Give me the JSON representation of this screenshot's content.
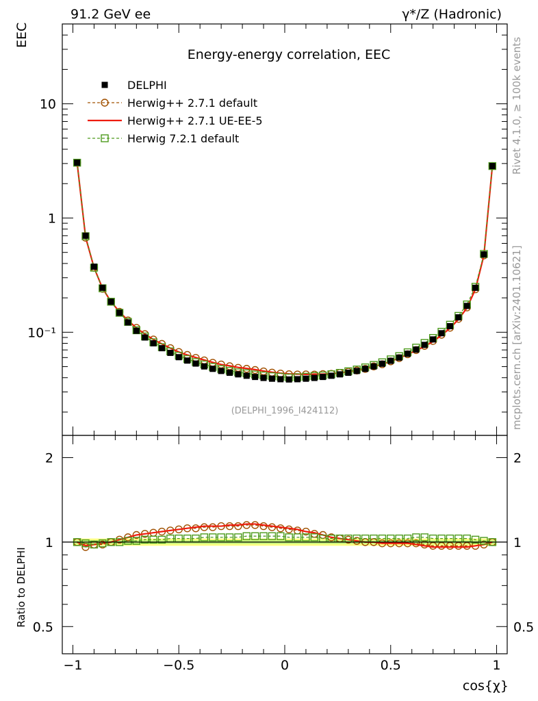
{
  "header": {
    "left": "91.2 GeV ee",
    "right": "γ*/Z (Hadronic)"
  },
  "side_labels": {
    "rivet": "Rivet 4.1.0, ≥ 100k events",
    "mcplots": "mcplots.cern.ch [arXiv:2401.10621]"
  },
  "chart_data": {
    "type": "line",
    "title": "Energy-energy correlation, EEC",
    "watermark": "(DELPHI_1996_I424112)",
    "xlabel": "cos{χ}",
    "ylabel": "EEC",
    "ratio_ylabel": "Ratio to DELPHI",
    "xlim": [
      -1.05,
      1.05
    ],
    "ylim": [
      0.0125,
      50
    ],
    "yscale": "log",
    "ratio_ylim": [
      0.4,
      2.4
    ],
    "x_ticks": [
      {
        "v": -1,
        "label": "−1"
      },
      {
        "v": -0.5,
        "label": "−0.5"
      },
      {
        "v": 0,
        "label": "0"
      },
      {
        "v": 0.5,
        "label": "0.5"
      },
      {
        "v": 1,
        "label": "1"
      }
    ],
    "y_ticks": [
      {
        "v": 10,
        "label": "10"
      },
      {
        "v": 1,
        "label": "1"
      },
      {
        "v": 0.1,
        "label": "10⁻¹"
      }
    ],
    "ratio_ticks": [
      {
        "v": 2,
        "label": "2"
      },
      {
        "v": 1,
        "label": "1"
      },
      {
        "v": 0.5,
        "label": "0.5"
      }
    ],
    "x": [
      -0.98,
      -0.94,
      -0.9,
      -0.86,
      -0.82,
      -0.78,
      -0.74,
      -0.7,
      -0.66,
      -0.62,
      -0.58,
      -0.54,
      -0.5,
      -0.46,
      -0.42,
      -0.38,
      -0.34,
      -0.3,
      -0.26,
      -0.22,
      -0.18,
      -0.14,
      -0.1,
      -0.06,
      -0.02,
      0.02,
      0.06,
      0.1,
      0.14,
      0.18,
      0.22,
      0.26,
      0.3,
      0.34,
      0.38,
      0.42,
      0.46,
      0.5,
      0.54,
      0.58,
      0.62,
      0.66,
      0.7,
      0.74,
      0.78,
      0.82,
      0.86,
      0.9,
      0.94,
      0.98
    ],
    "series": [
      {
        "name": "DELPHI",
        "color": "#000000",
        "marker": "filled-square",
        "values": [
          3.05,
          0.7,
          0.375,
          0.245,
          0.185,
          0.148,
          0.122,
          0.103,
          0.09,
          0.08,
          0.0725,
          0.066,
          0.0605,
          0.0565,
          0.0532,
          0.0502,
          0.0478,
          0.0458,
          0.0442,
          0.0428,
          0.0416,
          0.0406,
          0.0398,
          0.0392,
          0.0388,
          0.0386,
          0.0388,
          0.0392,
          0.0398,
          0.0406,
          0.0416,
          0.0428,
          0.0442,
          0.0458,
          0.0478,
          0.0502,
          0.053,
          0.0562,
          0.06,
          0.0648,
          0.0705,
          0.0775,
          0.0865,
          0.098,
          0.113,
          0.135,
          0.17,
          0.245,
          0.48,
          2.85
        ]
      },
      {
        "name": "Herwig++ 2.7.1 default",
        "color": "#a05000",
        "marker": "open-circle",
        "dashed": true,
        "ratio": [
          1.0,
          0.96,
          0.98,
          0.98,
          1.0,
          1.02,
          1.04,
          1.06,
          1.07,
          1.08,
          1.09,
          1.1,
          1.11,
          1.12,
          1.12,
          1.13,
          1.13,
          1.14,
          1.14,
          1.14,
          1.15,
          1.15,
          1.14,
          1.13,
          1.12,
          1.11,
          1.1,
          1.09,
          1.07,
          1.06,
          1.04,
          1.03,
          1.02,
          1.01,
          1.0,
          1.0,
          0.99,
          0.99,
          0.99,
          0.99,
          0.99,
          0.98,
          0.97,
          0.97,
          0.97,
          0.97,
          0.97,
          0.97,
          0.98,
          1.0
        ]
      },
      {
        "name": "Herwig++ 2.7.1 UE-EE-5",
        "color": "#ee1c0e",
        "marker": "none",
        "ratio": [
          1.0,
          0.97,
          0.98,
          0.99,
          1.0,
          1.02,
          1.04,
          1.06,
          1.07,
          1.08,
          1.09,
          1.1,
          1.11,
          1.12,
          1.13,
          1.14,
          1.14,
          1.14,
          1.15,
          1.15,
          1.16,
          1.16,
          1.15,
          1.14,
          1.13,
          1.12,
          1.11,
          1.09,
          1.08,
          1.06,
          1.04,
          1.03,
          1.02,
          1.01,
          1.0,
          1.0,
          0.99,
          0.99,
          0.99,
          0.99,
          0.98,
          0.97,
          0.96,
          0.96,
          0.96,
          0.96,
          0.96,
          0.97,
          0.98,
          1.0
        ]
      },
      {
        "name": "Herwig 7.2.1 default",
        "color": "#4c9a1c",
        "marker": "open-square",
        "dashed": true,
        "ratio": [
          1.0,
          0.99,
          0.98,
          0.99,
          1.0,
          1.0,
          1.01,
          1.01,
          1.02,
          1.02,
          1.02,
          1.03,
          1.03,
          1.03,
          1.03,
          1.04,
          1.04,
          1.04,
          1.04,
          1.04,
          1.05,
          1.05,
          1.05,
          1.05,
          1.05,
          1.04,
          1.04,
          1.04,
          1.04,
          1.03,
          1.03,
          1.03,
          1.03,
          1.03,
          1.03,
          1.03,
          1.03,
          1.03,
          1.03,
          1.03,
          1.04,
          1.04,
          1.03,
          1.03,
          1.03,
          1.03,
          1.03,
          1.02,
          1.01,
          1.0
        ]
      }
    ],
    "uncertainty_band": {
      "color": "#ffff66",
      "inner_color": "#b5f27a",
      "half_width": 0.03
    },
    "legend_position": "top-left"
  }
}
